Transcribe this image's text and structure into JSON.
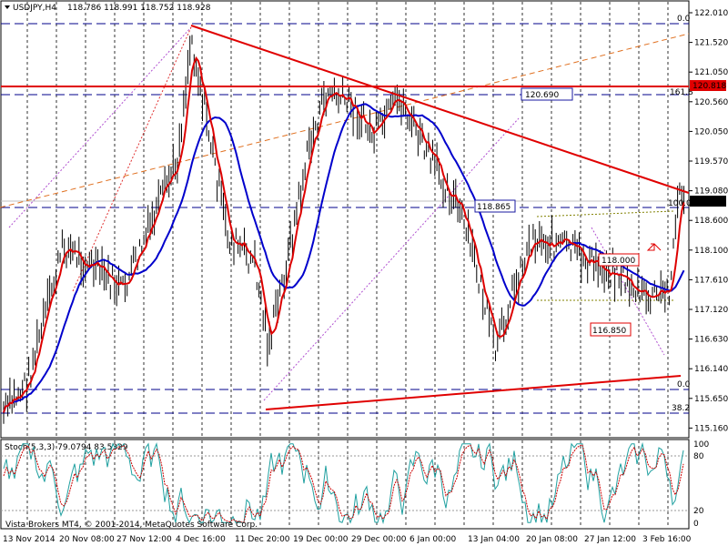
{
  "window": {
    "symbol_label": "USDJPY,H4",
    "ohlc": "118.786 118.991 118.752 118.928",
    "indicator_title": "Stoch(5,3,3) 79.0794 83.5329",
    "footer": "Vista Brokers MT4, © 2001-2014, MetaQuotes Software Corp."
  },
  "price_axis": {
    "ticks": [
      "122.010",
      "121.520",
      "121.050",
      "120.560",
      "120.050",
      "119.570",
      "119.080",
      "118.600",
      "118.100",
      "117.610",
      "117.120",
      "116.630",
      "116.140",
      "115.650",
      "115.160"
    ],
    "current_price_label": "118.928",
    "resistance_label": "120.818"
  },
  "stoch_axis": {
    "ticks": [
      "100",
      "80",
      "20",
      "0"
    ]
  },
  "time_axis": {
    "ticks": [
      "13 Nov 2014",
      "20 Nov 08:00",
      "27 Nov 12:00",
      "4 Dec 16:00",
      "11 Dec 20:00",
      "19 Dec 00:00",
      "29 Dec 00:00",
      "6 Jan 00:00",
      "13 Jan 04:00",
      "20 Jan 08:00",
      "27 Jan 12:00",
      "3 Feb 16:00"
    ]
  },
  "fibonacci": {
    "levels": [
      "0.0",
      "161.8",
      "100.0",
      "0.0",
      "38.2"
    ]
  },
  "annotations": {
    "box_high": "120.690",
    "box_mid": "118.865",
    "box_right": "118.000",
    "box_low": "116.850"
  },
  "colors": {
    "price_bar": "#000000",
    "fast_ma": "#dd0000",
    "slow_ma": "#0000cc",
    "trendline": "#e00000",
    "fib_line": "#00008b",
    "stoch_main": "#20a0a0",
    "stoch_signal": "#cc0000",
    "label_bg": "#e00000"
  }
}
